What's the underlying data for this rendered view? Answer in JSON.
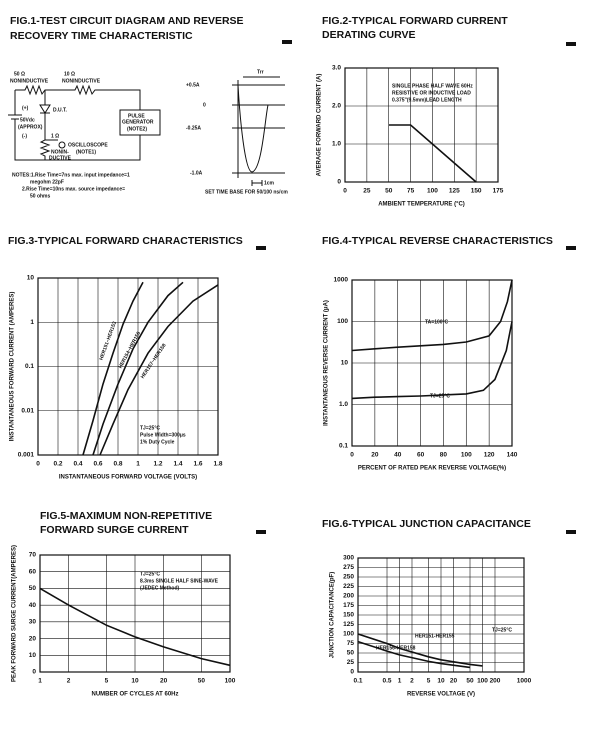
{
  "figure1": {
    "title": [
      "FIG.1-TEST CIRCUIT DIAGRAM AND REVERSE",
      "RECOVERY TIME CHARACTERISTIC"
    ],
    "labels": [
      "50 Ω",
      "NONINDUCTIVE",
      "10 Ω",
      "NONINDUCTIVE",
      "(+)",
      "50Vdc",
      "(APPROX)",
      "(-)",
      "D.U.T.",
      "PULSE",
      "GENERATOR",
      "(NOTE2)",
      "1 Ω",
      "NONIN-",
      "DUCTIVE",
      "OSCILLOSCOPE",
      "(NOTE1)"
    ],
    "notes": [
      "NOTES:1.Rise Time=7ns max. input impedance=1",
      "megohm 22pF",
      "2.Rise Time=10ns max. source impedance=",
      "50 ohms"
    ],
    "waveform": {
      "levels": [
        "+0.5A",
        "0",
        "-0.25A",
        "-1.0A"
      ],
      "trr": "Trr",
      "scale": "1cm",
      "note": "SET TIME BASE FOR 50/100 ns/cm"
    }
  },
  "chart_data": [
    {
      "type": "line",
      "title": [
        "FIG.2-TYPICAL FORWARD CURRENT",
        "DERATING CURVE"
      ],
      "x_label": "AMBIENT TEMPERATURE (°C)",
      "y_label": "AVERAGE FORWARD CURRENT (A)",
      "annotations": [
        "SINGLE PHASE HALF WAVE 60Hz",
        "RESISTIVE OR INDUCTIVE LOAD",
        "0.375\"(9.5mm)LEAD LENGTH"
      ],
      "xlim": [
        0,
        175
      ],
      "xticks": [
        0,
        25,
        50,
        75,
        100,
        125,
        150,
        175
      ],
      "ylim": [
        0,
        3
      ],
      "yticks": [
        0,
        {
          "value": 1,
          "label": "1.0"
        },
        {
          "value": 2,
          "label": "2.0"
        },
        {
          "value": 3,
          "label": "3.0"
        }
      ],
      "grid": true,
      "series": [
        {
          "color": "#111111",
          "x": [
            50,
            75,
            150
          ],
          "values": [
            1.5,
            1.5,
            0
          ]
        }
      ]
    },
    {
      "type": "line",
      "title": [
        "FIG.3-TYPICAL FORWARD CHARACTERISTICS"
      ],
      "x_label": "INSTANTANEOUS FORWARD VOLTAGE (VOLTS)",
      "y_label": "INSTANTANEOUS FORWARD CURRENT (AMPERES)",
      "annotations": [
        "TJ=25°C",
        "Pulse Width=300μs",
        "1% Duty Cycle"
      ],
      "xlim": [
        0,
        1.8
      ],
      "xticks": [
        0,
        0.2,
        0.4,
        0.6,
        0.8,
        1,
        1.2,
        1.4,
        1.6,
        1.8
      ],
      "ylim": [
        0.001,
        10
      ],
      "yticks": [
        0.001,
        0.01,
        0.1,
        1,
        10
      ],
      "yscale": "log",
      "grid": true,
      "series": [
        {
          "name": "HER151~HER153",
          "color": "#111111",
          "x": [
            0.45,
            0.55,
            0.65,
            0.75,
            0.85,
            0.95,
            1.05
          ],
          "values": [
            0.001,
            0.006,
            0.04,
            0.2,
            0.9,
            3,
            8
          ]
        },
        {
          "name": "HER154~HER156",
          "color": "#111111",
          "x": [
            0.55,
            0.65,
            0.8,
            0.95,
            1.1,
            1.3,
            1.45
          ],
          "values": [
            0.001,
            0.005,
            0.04,
            0.25,
            1,
            4,
            8
          ]
        },
        {
          "name": "HER157~HER158",
          "color": "#111111",
          "x": [
            0.62,
            0.75,
            0.9,
            1.1,
            1.3,
            1.55,
            1.8
          ],
          "values": [
            0.001,
            0.005,
            0.03,
            0.2,
            0.8,
            3,
            7
          ]
        }
      ]
    },
    {
      "type": "line",
      "title": [
        "FIG.4-TYPICAL REVERSE CHARACTERISTICS"
      ],
      "x_label": "PERCENT OF RATED PEAK REVERSE VOLTAGE(%)",
      "y_label": "INSTANTANEOUS REVERSE CURRENT (μA)",
      "xlim": [
        0,
        140
      ],
      "xticks": [
        0,
        20,
        40,
        60,
        80,
        100,
        120,
        140
      ],
      "ylim": [
        0.1,
        1000
      ],
      "yticks": [
        0.1,
        {
          "value": 1,
          "label": "1.0"
        },
        10,
        100,
        1000
      ],
      "yscale": "log",
      "grid": true,
      "series": [
        {
          "name": "TA=100°C",
          "color": "#111111",
          "x": [
            0,
            20,
            40,
            60,
            80,
            100,
            120,
            130,
            136,
            140
          ],
          "values": [
            20,
            22,
            24,
            26,
            28,
            32,
            45,
            100,
            300,
            1000
          ]
        },
        {
          "name": "TJ=25°C",
          "color": "#111111",
          "x": [
            0,
            20,
            40,
            60,
            80,
            100,
            115,
            125,
            135,
            140
          ],
          "values": [
            1.4,
            1.5,
            1.55,
            1.6,
            1.7,
            1.8,
            2.2,
            4,
            20,
            100
          ]
        }
      ]
    },
    {
      "type": "line",
      "title": [
        "FIG.5-MAXIMUM NON-REPETITIVE",
        "FORWARD SURGE CURRENT"
      ],
      "x_label": "NUMBER OF CYCLES AT 60Hz",
      "y_label": "PEAK FORWARD SURGE CURRENT(AMPERES)",
      "annotations": [
        "TJ=25°C",
        "8.3ms SINGLE HALF SINE-WAVE",
        "(JEDEC Method)"
      ],
      "xlim": [
        1,
        100
      ],
      "xticks": [
        1,
        2,
        5,
        10,
        20,
        50,
        100
      ],
      "xscale": "log",
      "ylim": [
        0,
        70
      ],
      "yticks": [
        0,
        10,
        20,
        30,
        40,
        50,
        60,
        70
      ],
      "grid": true,
      "series": [
        {
          "color": "#111111",
          "x": [
            1,
            2,
            5,
            10,
            20,
            50,
            100
          ],
          "values": [
            50,
            40,
            28,
            21,
            15,
            8,
            4
          ]
        }
      ]
    },
    {
      "type": "line",
      "title": [
        "FIG.6-TYPICAL JUNCTION CAPACITANCE"
      ],
      "x_label": "REVERSE VOLTAGE (V)",
      "y_label": "JUNCTION CAPACITANCE(pF)",
      "annotations": [
        "TJ=25°C"
      ],
      "xlim": [
        0.1,
        1000
      ],
      "xticks": [
        0.1,
        0.5,
        1,
        2,
        5,
        10,
        20,
        50,
        100,
        200,
        1000
      ],
      "xscale": "log",
      "ylim": [
        0,
        300
      ],
      "yticks": [
        0,
        25,
        50,
        75,
        100,
        125,
        150,
        175,
        200,
        225,
        250,
        275,
        300
      ],
      "grid": true,
      "series": [
        {
          "name": "HER151-HER155",
          "color": "#111111",
          "x": [
            0.1,
            0.5,
            1,
            5,
            10,
            50,
            100
          ],
          "values": [
            100,
            75,
            62,
            40,
            32,
            20,
            16
          ]
        },
        {
          "name": "HER156-HER158",
          "color": "#111111",
          "x": [
            0.1,
            0.5,
            1,
            5,
            10,
            50
          ],
          "values": [
            80,
            55,
            45,
            28,
            22,
            12
          ]
        }
      ]
    }
  ]
}
